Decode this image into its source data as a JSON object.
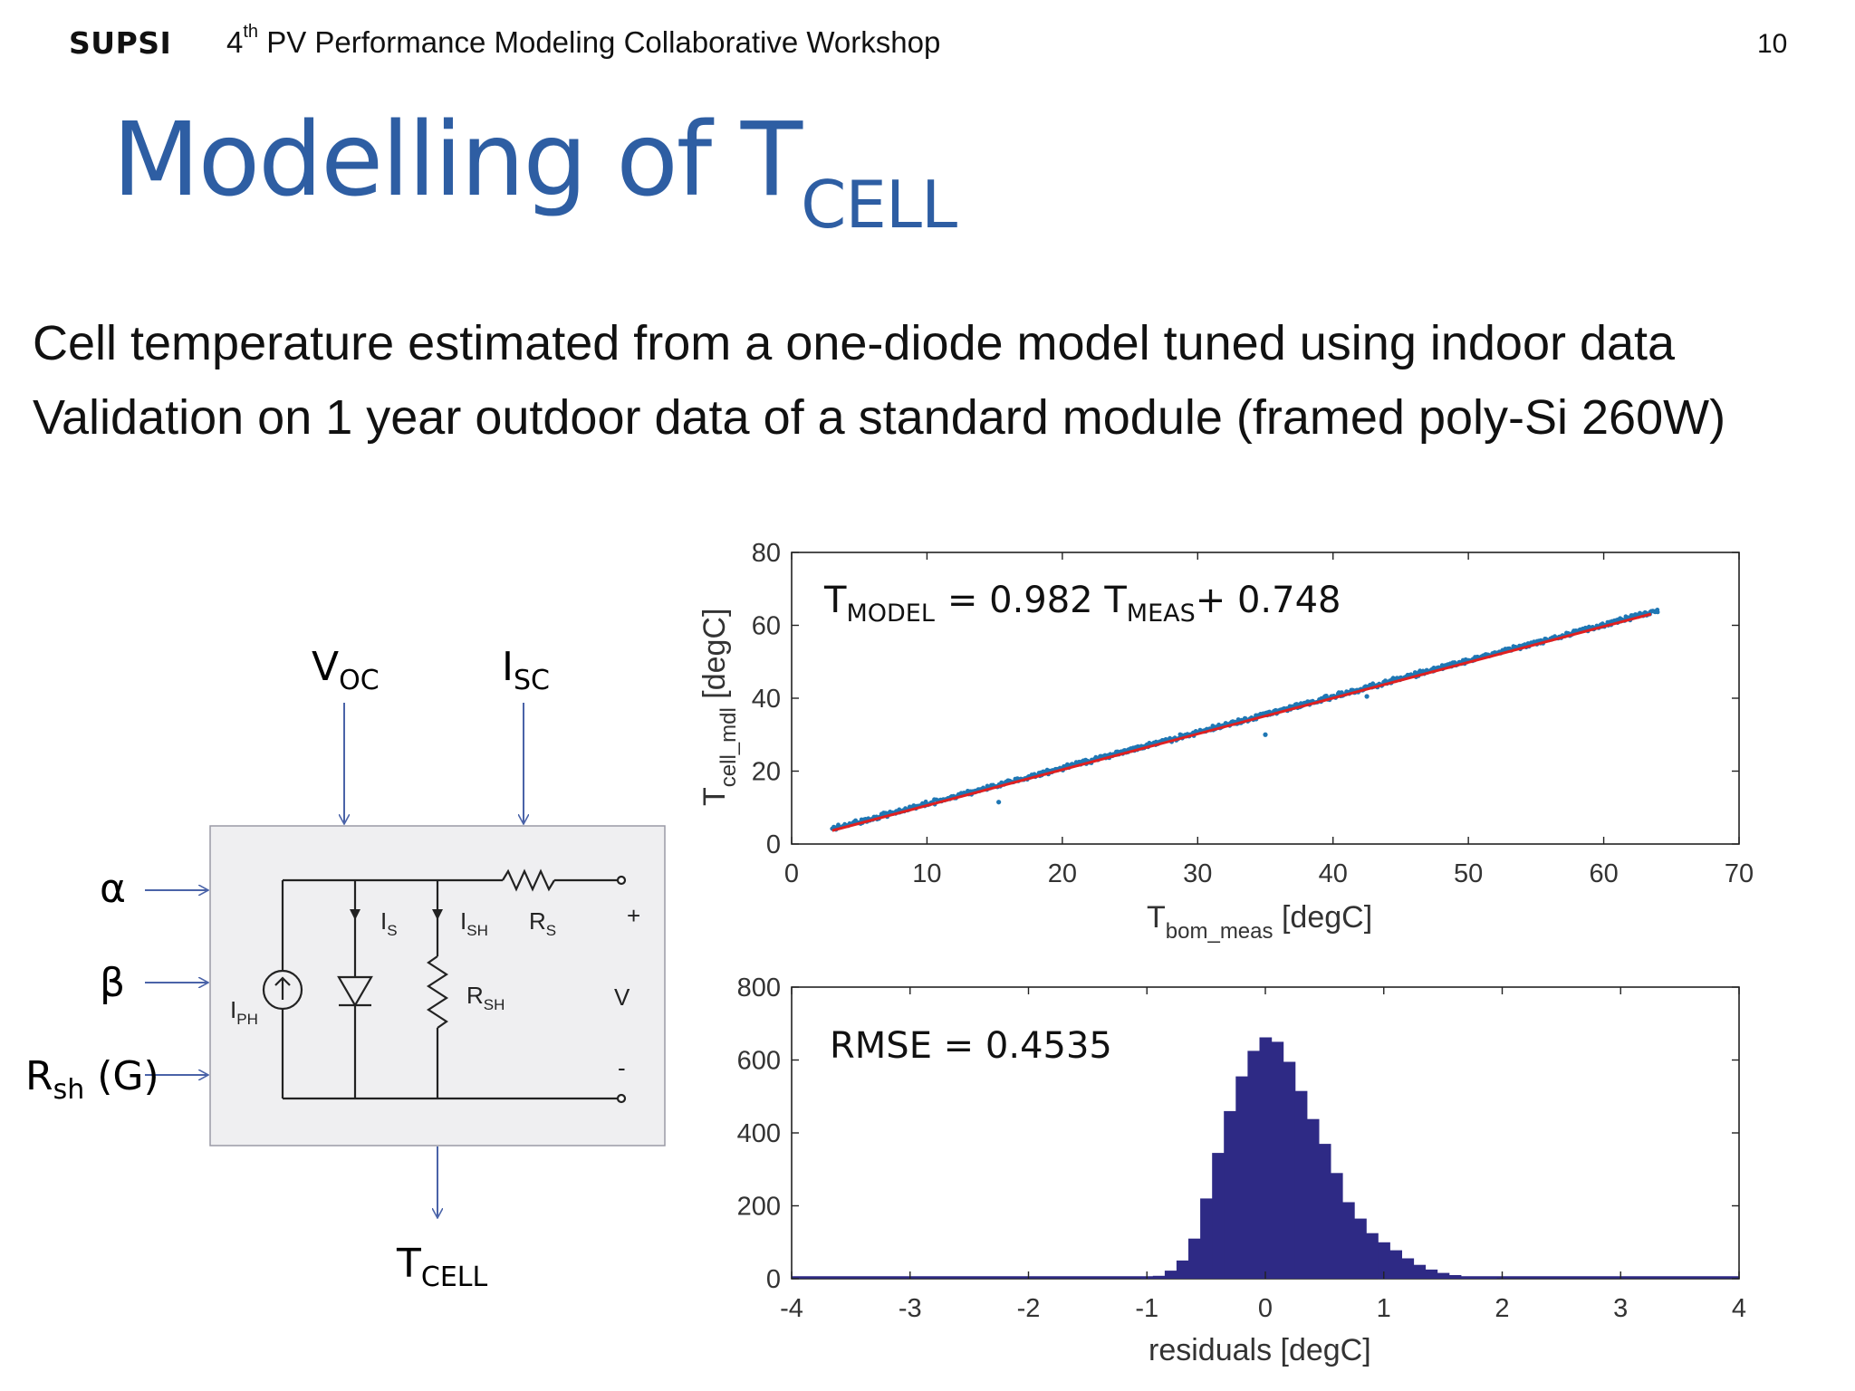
{
  "header": {
    "logo": "SUPSI",
    "workshop_prefix": "4",
    "workshop_sup": "th",
    "workshop_rest": " PV Performance Modeling Collaborative Workshop",
    "page_number": "10"
  },
  "title": {
    "main": "Modelling of T",
    "sub": "CELL"
  },
  "bullets": [
    "Cell temperature estimated from a one-diode model tuned using indoor data",
    "Validation on 1 year outdoor data of a standard module (framed poly-Si 260W)"
  ],
  "diagram": {
    "inputs_top": [
      {
        "main": "V",
        "sub": "OC"
      },
      {
        "main": "I",
        "sub": "SC"
      }
    ],
    "inputs_left": [
      {
        "main": "α",
        "sub": ""
      },
      {
        "main": "β",
        "sub": ""
      },
      {
        "main": "R",
        "sub": "sh",
        "suffix": " (G)"
      }
    ],
    "output": {
      "main": "T",
      "sub": "CELL"
    },
    "circuit_labels": {
      "iph": {
        "main": "I",
        "sub": "PH"
      },
      "is": {
        "main": "I",
        "sub": "S"
      },
      "ish": {
        "main": "I",
        "sub": "SH"
      },
      "rs": {
        "main": "R",
        "sub": "S"
      },
      "rsh": {
        "main": "R",
        "sub": "SH"
      },
      "plus": "+",
      "v": "V",
      "minus": "-"
    }
  },
  "chart_data": [
    {
      "type": "scatter",
      "xlabel_main": "T",
      "xlabel_sub": "bom_meas",
      "xlabel_unit": " [degC]",
      "ylabel_main": "T",
      "ylabel_sub": "cell_mdl",
      "ylabel_unit": " [degC]",
      "xlim": [
        0,
        70
      ],
      "ylim": [
        0,
        80
      ],
      "xticks": [
        0,
        10,
        20,
        30,
        40,
        50,
        60,
        70
      ],
      "yticks": [
        0,
        20,
        40,
        60,
        80
      ],
      "annotation": {
        "t1": "T",
        "s1": "MODEL",
        "eq": "=  0.982 T",
        "s2": "MEAS",
        "rest": "+ 0.748"
      },
      "fit": {
        "slope": 0.982,
        "intercept": 0.748,
        "x_range": [
          3,
          63.5
        ]
      },
      "point_range": {
        "x": [
          3,
          64
        ],
        "noise": 0.5
      },
      "outliers": [
        {
          "x": 15.3,
          "y": 11.5
        },
        {
          "x": 35,
          "y": 30
        },
        {
          "x": 42.5,
          "y": 40.5
        }
      ],
      "series_color": "#1f77b4",
      "fit_color": "#e02020"
    },
    {
      "type": "bar",
      "xlabel": "residuals [degC]",
      "xlim": [
        -4,
        4
      ],
      "ylim": [
        0,
        800
      ],
      "xticks": [
        -4,
        -3,
        -2,
        -1,
        0,
        1,
        2,
        3,
        4
      ],
      "yticks": [
        0,
        200,
        400,
        600,
        800
      ],
      "annotation": "RMSE = 0.4535",
      "bin_width": 0.1,
      "bins": [
        {
          "x": -1.0,
          "y": 3
        },
        {
          "x": -0.9,
          "y": 8
        },
        {
          "x": -0.8,
          "y": 22
        },
        {
          "x": -0.7,
          "y": 50
        },
        {
          "x": -0.6,
          "y": 110
        },
        {
          "x": -0.5,
          "y": 220
        },
        {
          "x": -0.4,
          "y": 345
        },
        {
          "x": -0.3,
          "y": 460
        },
        {
          "x": -0.2,
          "y": 555
        },
        {
          "x": -0.1,
          "y": 625
        },
        {
          "x": 0.0,
          "y": 662
        },
        {
          "x": 0.1,
          "y": 650
        },
        {
          "x": 0.2,
          "y": 595
        },
        {
          "x": 0.3,
          "y": 515
        },
        {
          "x": 0.4,
          "y": 438
        },
        {
          "x": 0.5,
          "y": 370
        },
        {
          "x": 0.6,
          "y": 290
        },
        {
          "x": 0.7,
          "y": 210
        },
        {
          "x": 0.8,
          "y": 165
        },
        {
          "x": 0.9,
          "y": 125
        },
        {
          "x": 1.0,
          "y": 100
        },
        {
          "x": 1.1,
          "y": 78
        },
        {
          "x": 1.2,
          "y": 56
        },
        {
          "x": 1.3,
          "y": 38
        },
        {
          "x": 1.4,
          "y": 25
        },
        {
          "x": 1.5,
          "y": 16
        },
        {
          "x": 1.6,
          "y": 10
        },
        {
          "x": 1.7,
          "y": 6
        },
        {
          "x": 1.8,
          "y": 4
        },
        {
          "x": 1.9,
          "y": 2
        }
      ],
      "bar_color": "#2e2a85"
    }
  ]
}
